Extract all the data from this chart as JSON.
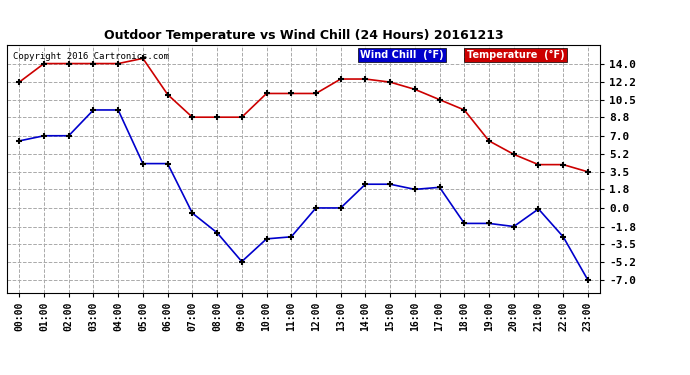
{
  "title": "Outdoor Temperature vs Wind Chill (24 Hours) 20161213",
  "copyright": "Copyright 2016 Cartronics.com",
  "x_labels": [
    "00:00",
    "01:00",
    "02:00",
    "03:00",
    "04:00",
    "05:00",
    "06:00",
    "07:00",
    "08:00",
    "09:00",
    "10:00",
    "11:00",
    "12:00",
    "13:00",
    "14:00",
    "15:00",
    "16:00",
    "17:00",
    "18:00",
    "19:00",
    "20:00",
    "21:00",
    "22:00",
    "23:00"
  ],
  "temperature": [
    12.2,
    14.0,
    14.0,
    14.0,
    14.0,
    14.5,
    11.0,
    8.8,
    8.8,
    8.8,
    11.1,
    11.1,
    11.1,
    12.5,
    12.5,
    12.2,
    11.5,
    10.5,
    9.5,
    6.5,
    5.2,
    4.2,
    4.2,
    3.5
  ],
  "wind_chill": [
    6.5,
    7.0,
    7.0,
    9.5,
    9.5,
    4.3,
    4.3,
    -0.5,
    -2.4,
    -5.2,
    -3.0,
    -2.8,
    0.0,
    0.0,
    2.3,
    2.3,
    1.8,
    2.0,
    -1.5,
    -1.5,
    -1.8,
    -0.1,
    -2.8,
    -7.0
  ],
  "temp_color": "#cc0000",
  "wind_color": "#0000cc",
  "bg_color": "#ffffff",
  "plot_bg_color": "#ffffff",
  "grid_color": "#aaaaaa",
  "yticks": [
    14.0,
    12.2,
    10.5,
    8.8,
    7.0,
    5.2,
    3.5,
    1.8,
    0.0,
    -1.8,
    -3.5,
    -5.2,
    -7.0
  ],
  "ylim": [
    -8.2,
    15.8
  ],
  "legend_wind_bg": "#0000cc",
  "legend_temp_bg": "#cc0000",
  "legend_wind_label": "Wind Chill  (°F)",
  "legend_temp_label": "Temperature  (°F)"
}
